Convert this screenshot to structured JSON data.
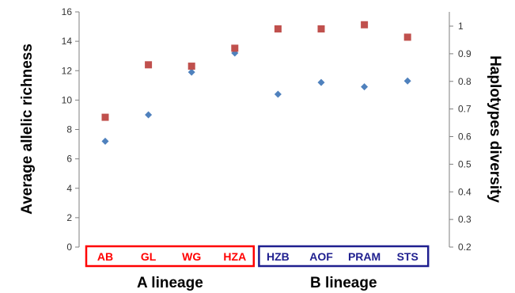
{
  "chart_data": {
    "type": "scatter",
    "categories": [
      "AB",
      "GL",
      "WG",
      "HZA",
      "HZB",
      "AOF",
      "PRAM",
      "STS"
    ],
    "series": [
      {
        "axis": "left",
        "marker": "diamond",
        "color": "#4F81BD",
        "values": [
          7.2,
          9.0,
          11.9,
          13.2,
          10.4,
          11.2,
          10.9,
          11.3
        ]
      },
      {
        "axis": "right",
        "marker": "square",
        "color": "#C0504D",
        "values": [
          0.67,
          0.86,
          0.855,
          0.92,
          0.99,
          0.99,
          1.005,
          0.96
        ]
      }
    ],
    "ylabel": "Average allelic richness",
    "y2label": "Haplotypes diversity",
    "ylim": [
      0,
      16
    ],
    "y2lim": [
      0.2,
      1.05
    ],
    "yticks": [
      "0",
      "2",
      "4",
      "6",
      "8",
      "10",
      "12",
      "14",
      "16"
    ],
    "y2ticks": [
      "0.2",
      "0.3",
      "0.4",
      "0.5",
      "0.6",
      "0.7",
      "0.8",
      "0.9",
      "1"
    ],
    "groups": [
      {
        "label": "A lineage",
        "color": "#FF0000",
        "categories": [
          "AB",
          "GL",
          "WG",
          "HZA"
        ]
      },
      {
        "label": "B lineage",
        "color": "#1F1F8F",
        "categories": [
          "HZB",
          "AOF",
          "PRAM",
          "STS"
        ]
      }
    ],
    "grid": false
  }
}
